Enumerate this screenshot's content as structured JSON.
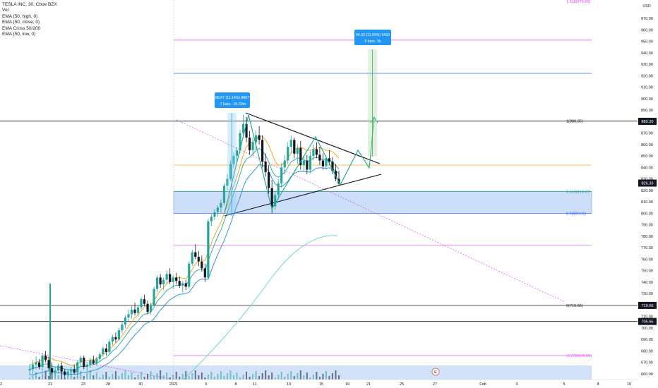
{
  "legend": {
    "symbol_line": "TESLA INC, 30, Cboe BZX",
    "studies": [
      "Vol",
      "EMA (50, high, 0)",
      "EMA (50, close, 0)",
      "EMA Cross 50/200",
      "EMA (50, low, 0)"
    ]
  },
  "currency": "USD",
  "colors": {
    "bull": "#26a69a",
    "bear": "#131722",
    "ema_high": "#f39c12",
    "ema_close": "#26a69a",
    "ema_low": "#1e88e5",
    "ema200": "#5fd3c2",
    "fib_magenta": "#e040fb",
    "fib_blue": "#2962ff",
    "fib_orange": "#ff9800",
    "zone": "#bcd4f5",
    "projection": "#17a589",
    "tag_blue": "#2196f3"
  },
  "chart_data": {
    "type": "candlestick",
    "title": "TESLA INC, 30, Cboe BZX",
    "currency": "USD",
    "ylim": [
      655,
      986
    ],
    "y_ticks": [
      660,
      670,
      680,
      690,
      700,
      710,
      720,
      730,
      740,
      750,
      760,
      770,
      780,
      790,
      800,
      810,
      820,
      830,
      840,
      850,
      860,
      870,
      880,
      890,
      900,
      910,
      920,
      930,
      940,
      950,
      960,
      970
    ],
    "x_ticks": [
      "21",
      "23",
      "28",
      "30",
      "2021",
      "6",
      "8",
      "11",
      "13",
      "15",
      "19",
      "21",
      "25",
      "27",
      "Feb",
      "3",
      "5",
      "8",
      "10",
      "12"
    ],
    "price_tags": [
      {
        "label": "880.20",
        "value": 880.2,
        "style": "black"
      },
      {
        "label": "826.33",
        "value": 826.33,
        "style": "black"
      },
      {
        "label": "719.66",
        "value": 719.66,
        "style": "black"
      },
      {
        "label": "705.65",
        "value": 705.65,
        "style": "black"
      }
    ],
    "horizontal_levels": [
      {
        "value": 951,
        "kind": "fib-extension"
      },
      {
        "value": 922,
        "kind": "fib"
      },
      {
        "value": 880.35,
        "kind": "fib",
        "label": "1(880.35)"
      },
      {
        "value": 842,
        "kind": "fib"
      },
      {
        "value": 818.97,
        "kind": "fib",
        "label": "0.618(818.97)"
      },
      {
        "value": 800.01,
        "kind": "fib",
        "label": "0.5(800.01)"
      },
      {
        "value": 772,
        "kind": "fib"
      },
      {
        "value": 719.66,
        "kind": "fib",
        "label": "0(719.66)"
      },
      {
        "value": 705.65,
        "kind": "level"
      },
      {
        "value": 675.95,
        "kind": "fib",
        "label": "-0.272(675.95)"
      }
    ],
    "top_fib_label": "1.618(979.66)",
    "support_zone": [
      800.01,
      818.97
    ],
    "triangle": {
      "upper": [
        [
          "8",
          884
        ],
        [
          "21",
          840
        ]
      ],
      "lower": [
        [
          "8",
          795
        ],
        [
          "21",
          831
        ]
      ]
    },
    "measure_left": {
      "line1": "88.67 (11.14%) 8867",
      "line2": "-7 bars, -3h 30m",
      "from": 795,
      "to": 884
    },
    "measure_right": {
      "line1": "94.33 (11.55%) 9433",
      "line2": "6 bars, 3h",
      "from": 846,
      "to": 940
    },
    "candles_ohlc": [
      [
        663,
        668,
        659,
        664
      ],
      [
        664,
        672,
        660,
        668
      ],
      [
        668,
        675,
        664,
        670
      ],
      [
        670,
        673,
        664,
        666
      ],
      [
        666,
        678,
        662,
        676
      ],
      [
        676,
        680,
        670,
        672
      ],
      [
        672,
        675,
        663,
        665
      ],
      [
        665,
        670,
        659,
        661
      ],
      [
        661,
        666,
        658,
        663
      ],
      [
        663,
        669,
        660,
        667
      ],
      [
        667,
        670,
        660,
        662
      ],
      [
        662,
        664,
        657,
        659
      ],
      [
        659,
        664,
        657,
        662
      ],
      [
        662,
        666,
        659,
        664
      ],
      [
        664,
        668,
        660,
        661
      ],
      [
        661,
        672,
        659,
        670
      ],
      [
        670,
        676,
        667,
        674
      ],
      [
        674,
        676,
        664,
        666
      ],
      [
        666,
        670,
        662,
        668
      ],
      [
        668,
        674,
        665,
        672
      ],
      [
        672,
        676,
        668,
        669
      ],
      [
        669,
        675,
        667,
        673
      ],
      [
        673,
        679,
        671,
        677
      ],
      [
        677,
        684,
        675,
        682
      ],
      [
        682,
        686,
        676,
        679
      ],
      [
        679,
        690,
        677,
        688
      ],
      [
        688,
        694,
        685,
        692
      ],
      [
        692,
        696,
        687,
        690
      ],
      [
        690,
        700,
        689,
        698
      ],
      [
        698,
        705,
        695,
        703
      ],
      [
        703,
        711,
        700,
        709
      ],
      [
        709,
        716,
        705,
        712
      ],
      [
        712,
        719,
        708,
        716
      ],
      [
        716,
        722,
        711,
        713
      ],
      [
        713,
        720,
        710,
        718
      ],
      [
        718,
        727,
        716,
        725
      ],
      [
        725,
        729,
        719,
        721
      ],
      [
        721,
        724,
        712,
        714
      ],
      [
        714,
        722,
        712,
        720
      ],
      [
        720,
        736,
        719,
        734
      ],
      [
        734,
        746,
        731,
        744
      ],
      [
        744,
        747,
        735,
        738
      ],
      [
        738,
        744,
        733,
        742
      ],
      [
        742,
        750,
        739,
        747
      ],
      [
        747,
        752,
        738,
        740
      ],
      [
        740,
        746,
        734,
        744
      ],
      [
        744,
        748,
        738,
        741
      ],
      [
        741,
        745,
        735,
        737
      ],
      [
        737,
        741,
        731,
        739
      ],
      [
        739,
        742,
        733,
        736
      ],
      [
        736,
        758,
        735,
        756
      ],
      [
        756,
        768,
        754,
        766
      ],
      [
        766,
        773,
        760,
        762
      ],
      [
        762,
        767,
        754,
        758
      ],
      [
        758,
        763,
        749,
        752
      ],
      [
        752,
        756,
        740,
        744
      ],
      [
        744,
        795,
        743,
        793
      ],
      [
        793,
        799,
        789,
        797
      ],
      [
        797,
        804,
        794,
        801
      ],
      [
        801,
        807,
        797,
        805
      ],
      [
        805,
        812,
        800,
        809
      ],
      [
        809,
        826,
        807,
        824
      ],
      [
        824,
        834,
        820,
        830
      ],
      [
        830,
        846,
        828,
        843
      ],
      [
        843,
        853,
        839,
        850
      ],
      [
        850,
        858,
        845,
        855
      ],
      [
        855,
        873,
        852,
        870
      ],
      [
        870,
        886,
        866,
        878
      ],
      [
        878,
        884,
        862,
        866
      ],
      [
        866,
        872,
        851,
        855
      ],
      [
        855,
        866,
        850,
        862
      ],
      [
        862,
        872,
        855,
        868
      ],
      [
        868,
        876,
        860,
        864
      ],
      [
        864,
        868,
        840,
        845
      ],
      [
        845,
        852,
        832,
        836
      ],
      [
        836,
        842,
        817,
        822
      ],
      [
        822,
        829,
        800,
        806
      ],
      [
        806,
        820,
        803,
        816
      ],
      [
        816,
        830,
        812,
        826
      ],
      [
        826,
        844,
        822,
        840
      ],
      [
        840,
        851,
        834,
        846
      ],
      [
        846,
        862,
        843,
        858
      ],
      [
        858,
        868,
        852,
        864
      ],
      [
        864,
        866,
        848,
        852
      ],
      [
        852,
        860,
        843,
        857
      ],
      [
        857,
        863,
        838,
        842
      ],
      [
        842,
        850,
        837,
        846
      ],
      [
        846,
        851,
        834,
        838
      ],
      [
        838,
        854,
        835,
        850
      ],
      [
        850,
        860,
        846,
        856
      ],
      [
        856,
        862,
        848,
        851
      ],
      [
        851,
        858,
        842,
        846
      ],
      [
        846,
        852,
        838,
        841
      ],
      [
        841,
        850,
        838,
        848
      ],
      [
        848,
        855,
        842,
        845
      ],
      [
        845,
        849,
        834,
        837
      ],
      [
        837,
        843,
        828,
        830
      ],
      [
        830,
        837,
        824,
        826
      ]
    ],
    "volume_spikes": [
      {
        "x_label": "21",
        "value": "high"
      }
    ]
  }
}
